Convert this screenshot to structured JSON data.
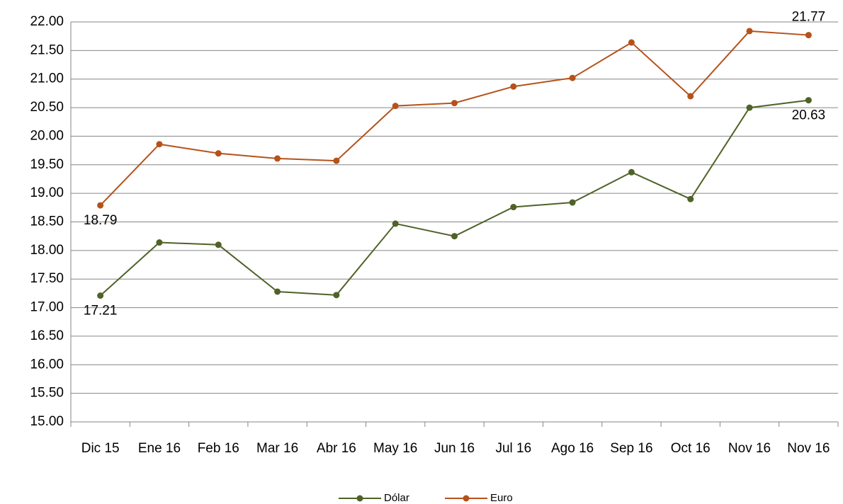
{
  "chart_data": {
    "type": "line",
    "categories": [
      "Dic 15",
      "Ene 16",
      "Feb 16",
      "Mar 16",
      "Abr 16",
      "May 16",
      "Jun 16",
      "Jul 16",
      "Ago 16",
      "Sep 16",
      "Oct 16",
      "Nov 16",
      "Nov 16"
    ],
    "series": [
      {
        "name": "Dólar",
        "color": "#4f6228",
        "values": [
          17.21,
          18.14,
          18.1,
          17.28,
          17.22,
          18.47,
          18.25,
          18.76,
          18.84,
          19.37,
          18.9,
          20.5,
          20.63
        ],
        "value_labels": [
          "17.21",
          null,
          null,
          null,
          null,
          null,
          null,
          null,
          null,
          null,
          null,
          null,
          "20.63"
        ]
      },
      {
        "name": "Euro",
        "color": "#b5521b",
        "values": [
          18.79,
          19.86,
          19.7,
          19.61,
          19.57,
          20.53,
          20.58,
          20.87,
          21.02,
          21.64,
          20.7,
          21.84,
          21.77
        ],
        "value_labels": [
          "18.79",
          null,
          null,
          null,
          null,
          null,
          null,
          null,
          null,
          null,
          null,
          null,
          "21.77"
        ]
      }
    ],
    "ylim": [
      15,
      22
    ],
    "yticks": [
      {
        "value": 15,
        "label": "15.00"
      },
      {
        "value": 15.5,
        "label": "15.50"
      },
      {
        "value": 16,
        "label": "16.00"
      },
      {
        "value": 16.5,
        "label": "16.50"
      },
      {
        "value": 17,
        "label": "17.00"
      },
      {
        "value": 17.5,
        "label": "17.50"
      },
      {
        "value": 18,
        "label": "18.00"
      },
      {
        "value": 18.5,
        "label": "18.50"
      },
      {
        "value": 19,
        "label": "19.00"
      },
      {
        "value": 19.5,
        "label": "19.50"
      },
      {
        "value": 20,
        "label": "20.00"
      },
      {
        "value": 20.5,
        "label": "20.50"
      },
      {
        "value": 21,
        "label": "21.00"
      },
      {
        "value": 21.5,
        "label": "21.50"
      },
      {
        "value": 22,
        "label": "22.00"
      }
    ],
    "grid": true,
    "legend": "bottom"
  }
}
